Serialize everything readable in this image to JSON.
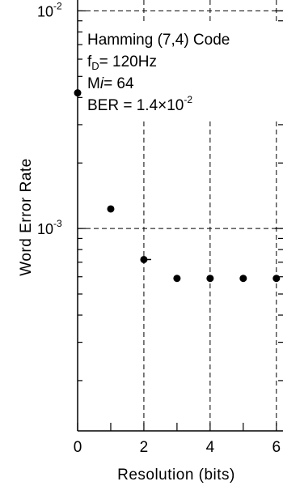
{
  "chart_data": {
    "type": "scatter",
    "xlabel": "Resolution (bits)",
    "ylabel": "Word Error Rate",
    "xlim": [
      0,
      6.2
    ],
    "ylim_log10": [
      -3.93,
      -1.95
    ],
    "log_scale_y": true,
    "grid": "dashed",
    "x_ticks": [
      {
        "value": 0,
        "label": "0"
      },
      {
        "value": 2,
        "label": "2"
      },
      {
        "value": 4,
        "label": "4"
      },
      {
        "value": 6,
        "label": "6"
      }
    ],
    "y_ticks": [
      {
        "value": 0.01,
        "mantissa": "10",
        "exponent": "-2"
      },
      {
        "value": 0.001,
        "mantissa": "10",
        "exponent": "-3"
      }
    ],
    "annotation": {
      "title": "Hamming (7,4) Code",
      "fd_main": "f",
      "fd_sub": "D",
      "fd_value": "= 120Hz",
      "mi_main": "M",
      "mi_italic": "i",
      "mi_value": "= 64",
      "ber_prefix": "BER = 1.4×10",
      "ber_exponent": "-2"
    },
    "points": [
      {
        "x": 0,
        "y": 0.0042
      },
      {
        "x": 1,
        "y": 0.00123
      },
      {
        "x": 2,
        "y": 0.00072
      },
      {
        "x": 3,
        "y": 0.00059
      },
      {
        "x": 4,
        "y": 0.00059
      },
      {
        "x": 5,
        "y": 0.00059
      },
      {
        "x": 6,
        "y": 0.00059
      }
    ]
  }
}
